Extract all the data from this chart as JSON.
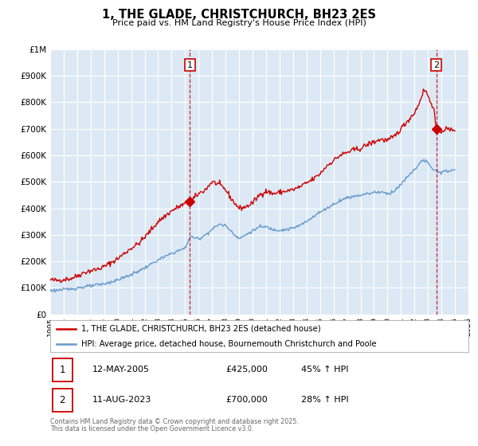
{
  "title": "1, THE GLADE, CHRISTCHURCH, BH23 2ES",
  "subtitle": "Price paid vs. HM Land Registry's House Price Index (HPI)",
  "legend_line1": "1, THE GLADE, CHRISTCHURCH, BH23 2ES (detached house)",
  "legend_line2": "HPI: Average price, detached house, Bournemouth Christchurch and Poole",
  "footnote1": "Contains HM Land Registry data © Crown copyright and database right 2025.",
  "footnote2": "This data is licensed under the Open Government Licence v3.0.",
  "transaction1_label": "1",
  "transaction1_date": "12-MAY-2005",
  "transaction1_price": "£425,000",
  "transaction1_hpi": "45% ↑ HPI",
  "transaction2_label": "2",
  "transaction2_date": "11-AUG-2023",
  "transaction2_price": "£700,000",
  "transaction2_hpi": "28% ↑ HPI",
  "vline1_x": 2005.36,
  "vline2_x": 2023.61,
  "marker1_x": 2005.36,
  "marker1_y": 425000,
  "marker2_x": 2023.61,
  "marker2_y": 700000,
  "red_color": "#cc0000",
  "blue_color": "#6699cc",
  "background_color": "#dce9f5",
  "grid_color": "#ffffff",
  "ylim": [
    0,
    1000000
  ],
  "xlim": [
    1995,
    2026
  ],
  "yticks": [
    0,
    100000,
    200000,
    300000,
    400000,
    500000,
    600000,
    700000,
    800000,
    900000,
    1000000
  ],
  "xticks": [
    1995,
    1996,
    1997,
    1998,
    1999,
    2000,
    2001,
    2002,
    2003,
    2004,
    2005,
    2006,
    2007,
    2008,
    2009,
    2010,
    2011,
    2012,
    2013,
    2014,
    2015,
    2016,
    2017,
    2018,
    2019,
    2020,
    2021,
    2022,
    2023,
    2024,
    2025,
    2026
  ],
  "red_anchors": [
    [
      1995.0,
      130000
    ],
    [
      1995.5,
      128000
    ],
    [
      1996.0,
      132000
    ],
    [
      1996.5,
      135000
    ],
    [
      1997.0,
      145000
    ],
    [
      1997.5,
      158000
    ],
    [
      1998.0,
      165000
    ],
    [
      1998.5,
      170000
    ],
    [
      1999.0,
      180000
    ],
    [
      1999.5,
      195000
    ],
    [
      2000.0,
      210000
    ],
    [
      2000.5,
      230000
    ],
    [
      2001.0,
      250000
    ],
    [
      2001.5,
      265000
    ],
    [
      2002.0,
      290000
    ],
    [
      2002.5,
      320000
    ],
    [
      2003.0,
      350000
    ],
    [
      2003.5,
      370000
    ],
    [
      2004.0,
      390000
    ],
    [
      2004.5,
      405000
    ],
    [
      2005.36,
      425000
    ],
    [
      2005.5,
      430000
    ],
    [
      2006.0,
      455000
    ],
    [
      2006.5,
      470000
    ],
    [
      2007.0,
      500000
    ],
    [
      2007.5,
      490000
    ],
    [
      2008.0,
      470000
    ],
    [
      2008.5,
      430000
    ],
    [
      2009.0,
      400000
    ],
    [
      2009.5,
      405000
    ],
    [
      2010.0,
      420000
    ],
    [
      2010.5,
      450000
    ],
    [
      2011.0,
      465000
    ],
    [
      2011.5,
      455000
    ],
    [
      2012.0,
      460000
    ],
    [
      2012.5,
      465000
    ],
    [
      2013.0,
      470000
    ],
    [
      2013.5,
      480000
    ],
    [
      2014.0,
      495000
    ],
    [
      2014.5,
      510000
    ],
    [
      2015.0,
      530000
    ],
    [
      2015.5,
      560000
    ],
    [
      2016.0,
      580000
    ],
    [
      2016.5,
      600000
    ],
    [
      2017.0,
      610000
    ],
    [
      2017.5,
      620000
    ],
    [
      2018.0,
      625000
    ],
    [
      2018.5,
      640000
    ],
    [
      2019.0,
      650000
    ],
    [
      2019.5,
      660000
    ],
    [
      2020.0,
      655000
    ],
    [
      2020.5,
      670000
    ],
    [
      2021.0,
      700000
    ],
    [
      2021.5,
      730000
    ],
    [
      2022.0,
      760000
    ],
    [
      2022.3,
      790000
    ],
    [
      2022.5,
      820000
    ],
    [
      2022.7,
      845000
    ],
    [
      2022.9,
      840000
    ],
    [
      2023.0,
      820000
    ],
    [
      2023.2,
      800000
    ],
    [
      2023.4,
      785000
    ],
    [
      2023.61,
      700000
    ],
    [
      2023.8,
      695000
    ],
    [
      2024.0,
      690000
    ],
    [
      2024.3,
      700000
    ],
    [
      2024.6,
      695000
    ],
    [
      2025.0,
      698000
    ]
  ],
  "blue_anchors": [
    [
      1995.0,
      90000
    ],
    [
      1996.0,
      93000
    ],
    [
      1997.0,
      100000
    ],
    [
      1998.0,
      107000
    ],
    [
      1999.0,
      115000
    ],
    [
      2000.0,
      130000
    ],
    [
      2001.0,
      150000
    ],
    [
      2002.0,
      175000
    ],
    [
      2003.0,
      205000
    ],
    [
      2004.0,
      230000
    ],
    [
      2005.0,
      250000
    ],
    [
      2005.36,
      293000
    ],
    [
      2006.0,
      285000
    ],
    [
      2006.5,
      300000
    ],
    [
      2007.0,
      320000
    ],
    [
      2007.5,
      340000
    ],
    [
      2008.0,
      335000
    ],
    [
      2008.5,
      310000
    ],
    [
      2009.0,
      285000
    ],
    [
      2009.5,
      300000
    ],
    [
      2010.0,
      315000
    ],
    [
      2010.5,
      330000
    ],
    [
      2011.0,
      330000
    ],
    [
      2011.5,
      320000
    ],
    [
      2012.0,
      318000
    ],
    [
      2012.5,
      320000
    ],
    [
      2013.0,
      325000
    ],
    [
      2013.5,
      335000
    ],
    [
      2014.0,
      350000
    ],
    [
      2014.5,
      370000
    ],
    [
      2015.0,
      385000
    ],
    [
      2015.5,
      400000
    ],
    [
      2016.0,
      415000
    ],
    [
      2016.5,
      430000
    ],
    [
      2017.0,
      440000
    ],
    [
      2017.5,
      445000
    ],
    [
      2018.0,
      450000
    ],
    [
      2018.5,
      455000
    ],
    [
      2019.0,
      460000
    ],
    [
      2019.5,
      462000
    ],
    [
      2020.0,
      455000
    ],
    [
      2020.5,
      465000
    ],
    [
      2021.0,
      490000
    ],
    [
      2021.5,
      520000
    ],
    [
      2022.0,
      545000
    ],
    [
      2022.3,
      565000
    ],
    [
      2022.5,
      575000
    ],
    [
      2022.7,
      580000
    ],
    [
      2022.9,
      578000
    ],
    [
      2023.0,
      570000
    ],
    [
      2023.2,
      555000
    ],
    [
      2023.4,
      540000
    ],
    [
      2023.61,
      547000
    ],
    [
      2023.8,
      540000
    ],
    [
      2024.0,
      535000
    ],
    [
      2024.3,
      538000
    ],
    [
      2024.6,
      542000
    ],
    [
      2025.0,
      545000
    ]
  ]
}
